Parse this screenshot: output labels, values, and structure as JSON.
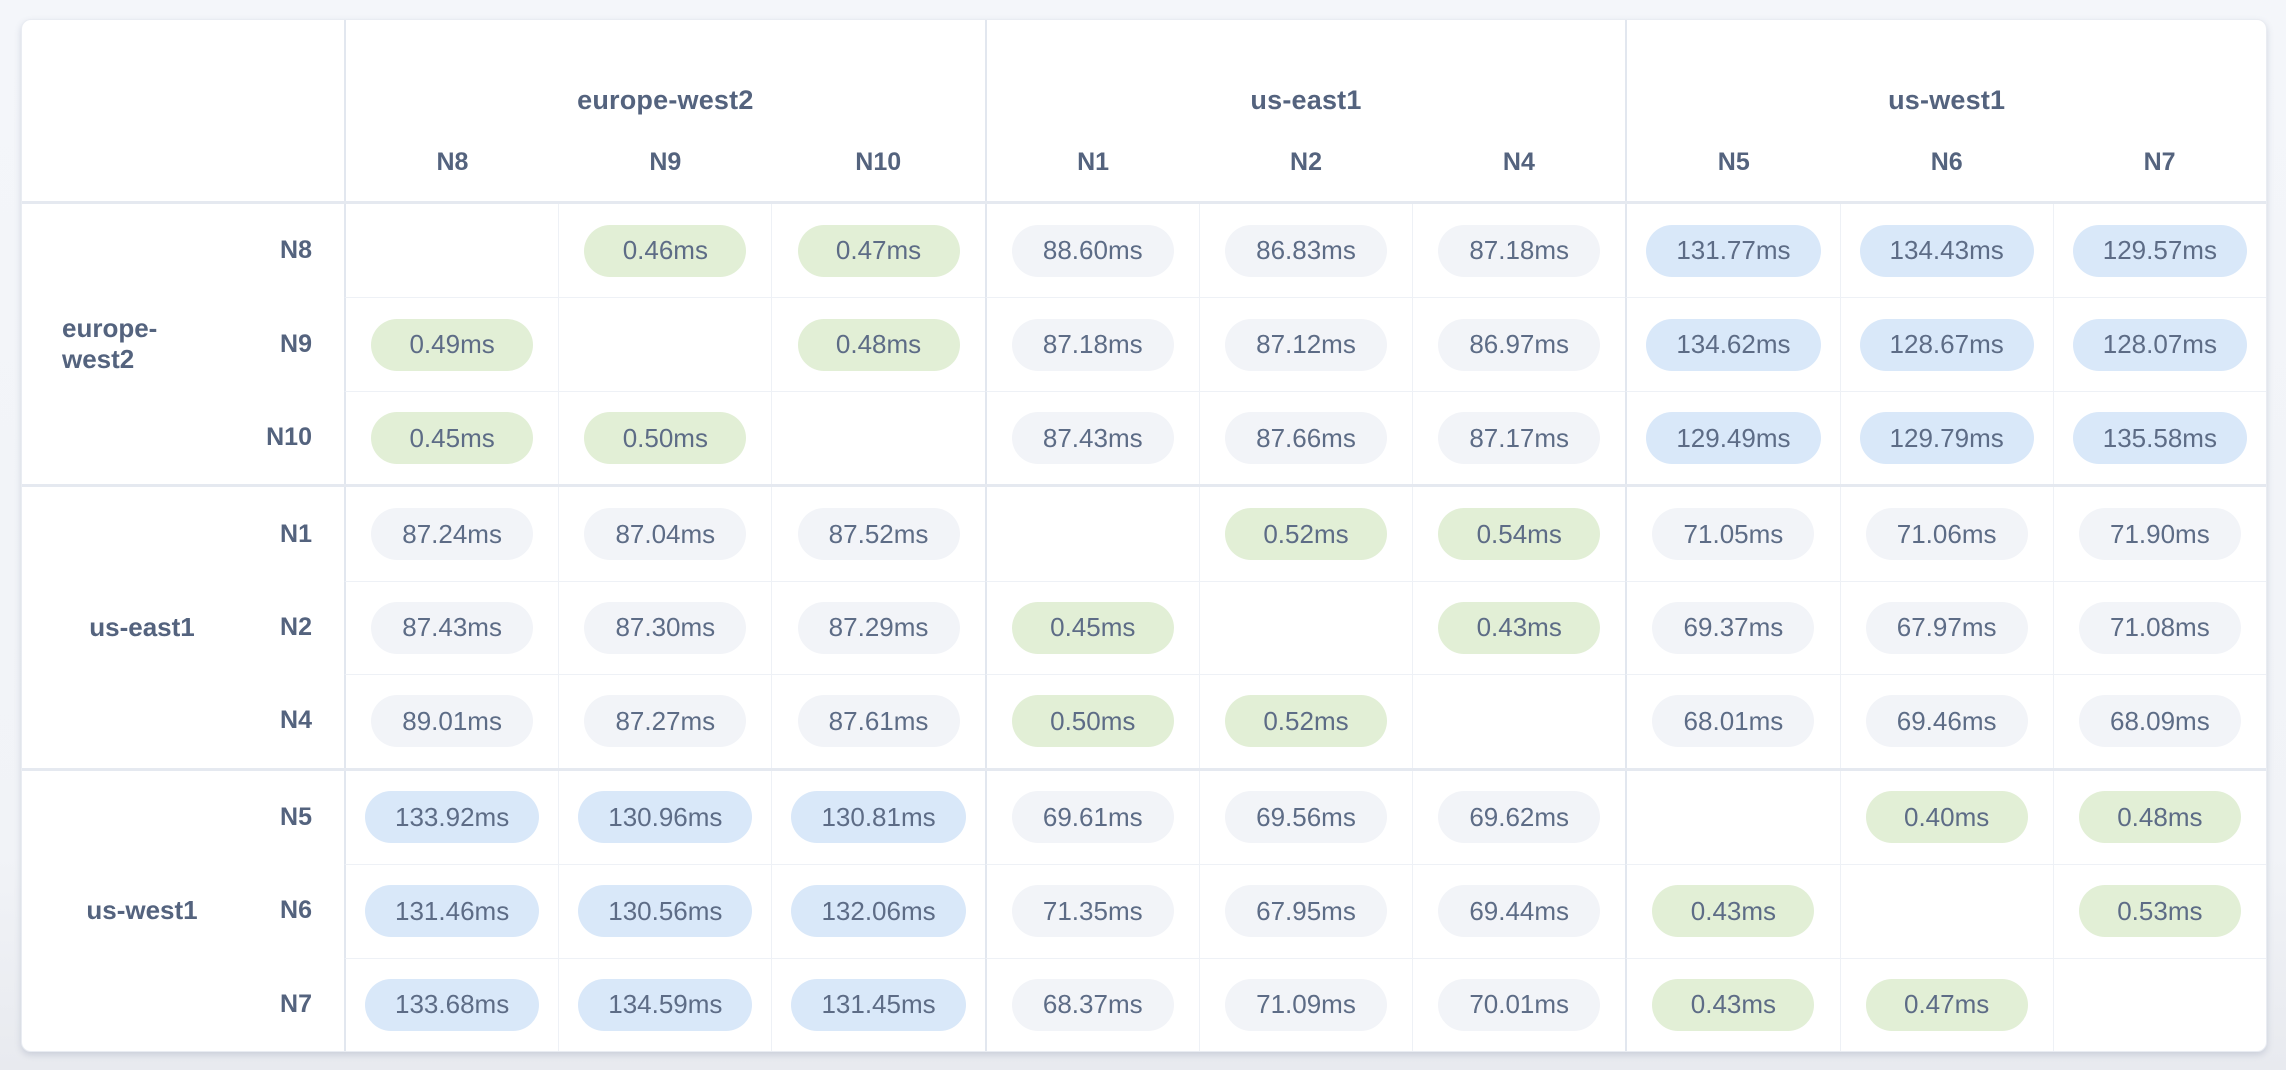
{
  "colors": {
    "low_latency_pill": "#e2efd6",
    "medium_latency_pill": "#f2f4f8",
    "high_latency_pill": "#d9e8f9",
    "text": "#5d6c86",
    "header_text": "#54637e"
  },
  "column_groups": [
    {
      "region": "europe-west2",
      "nodes": [
        "N8",
        "N9",
        "N10"
      ]
    },
    {
      "region": "us-east1",
      "nodes": [
        "N1",
        "N2",
        "N4"
      ]
    },
    {
      "region": "us-west1",
      "nodes": [
        "N5",
        "N6",
        "N7"
      ]
    }
  ],
  "row_groups": [
    {
      "region": "europe-west2",
      "rows": [
        {
          "node": "N8",
          "cells": [
            {
              "text": "",
              "tone": "none"
            },
            {
              "text": "0.46ms",
              "tone": "green"
            },
            {
              "text": "0.47ms",
              "tone": "green"
            },
            {
              "text": "88.60ms",
              "tone": "neutral"
            },
            {
              "text": "86.83ms",
              "tone": "neutral"
            },
            {
              "text": "87.18ms",
              "tone": "neutral"
            },
            {
              "text": "131.77ms",
              "tone": "blue"
            },
            {
              "text": "134.43ms",
              "tone": "blue"
            },
            {
              "text": "129.57ms",
              "tone": "blue"
            }
          ]
        },
        {
          "node": "N9",
          "cells": [
            {
              "text": "0.49ms",
              "tone": "green"
            },
            {
              "text": "",
              "tone": "none"
            },
            {
              "text": "0.48ms",
              "tone": "green"
            },
            {
              "text": "87.18ms",
              "tone": "neutral"
            },
            {
              "text": "87.12ms",
              "tone": "neutral"
            },
            {
              "text": "86.97ms",
              "tone": "neutral"
            },
            {
              "text": "134.62ms",
              "tone": "blue"
            },
            {
              "text": "128.67ms",
              "tone": "blue"
            },
            {
              "text": "128.07ms",
              "tone": "blue"
            }
          ]
        },
        {
          "node": "N10",
          "cells": [
            {
              "text": "0.45ms",
              "tone": "green"
            },
            {
              "text": "0.50ms",
              "tone": "green"
            },
            {
              "text": "",
              "tone": "none"
            },
            {
              "text": "87.43ms",
              "tone": "neutral"
            },
            {
              "text": "87.66ms",
              "tone": "neutral"
            },
            {
              "text": "87.17ms",
              "tone": "neutral"
            },
            {
              "text": "129.49ms",
              "tone": "blue"
            },
            {
              "text": "129.79ms",
              "tone": "blue"
            },
            {
              "text": "135.58ms",
              "tone": "blue"
            }
          ]
        }
      ]
    },
    {
      "region": "us-east1",
      "rows": [
        {
          "node": "N1",
          "cells": [
            {
              "text": "87.24ms",
              "tone": "neutral"
            },
            {
              "text": "87.04ms",
              "tone": "neutral"
            },
            {
              "text": "87.52ms",
              "tone": "neutral"
            },
            {
              "text": "",
              "tone": "none"
            },
            {
              "text": "0.52ms",
              "tone": "green"
            },
            {
              "text": "0.54ms",
              "tone": "green"
            },
            {
              "text": "71.05ms",
              "tone": "neutral"
            },
            {
              "text": "71.06ms",
              "tone": "neutral"
            },
            {
              "text": "71.90ms",
              "tone": "neutral"
            }
          ]
        },
        {
          "node": "N2",
          "cells": [
            {
              "text": "87.43ms",
              "tone": "neutral"
            },
            {
              "text": "87.30ms",
              "tone": "neutral"
            },
            {
              "text": "87.29ms",
              "tone": "neutral"
            },
            {
              "text": "0.45ms",
              "tone": "green"
            },
            {
              "text": "",
              "tone": "none"
            },
            {
              "text": "0.43ms",
              "tone": "green"
            },
            {
              "text": "69.37ms",
              "tone": "neutral"
            },
            {
              "text": "67.97ms",
              "tone": "neutral"
            },
            {
              "text": "71.08ms",
              "tone": "neutral"
            }
          ]
        },
        {
          "node": "N4",
          "cells": [
            {
              "text": "89.01ms",
              "tone": "neutral"
            },
            {
              "text": "87.27ms",
              "tone": "neutral"
            },
            {
              "text": "87.61ms",
              "tone": "neutral"
            },
            {
              "text": "0.50ms",
              "tone": "green"
            },
            {
              "text": "0.52ms",
              "tone": "green"
            },
            {
              "text": "",
              "tone": "none"
            },
            {
              "text": "68.01ms",
              "tone": "neutral"
            },
            {
              "text": "69.46ms",
              "tone": "neutral"
            },
            {
              "text": "68.09ms",
              "tone": "neutral"
            }
          ]
        }
      ]
    },
    {
      "region": "us-west1",
      "rows": [
        {
          "node": "N5",
          "cells": [
            {
              "text": "133.92ms",
              "tone": "blue"
            },
            {
              "text": "130.96ms",
              "tone": "blue"
            },
            {
              "text": "130.81ms",
              "tone": "blue"
            },
            {
              "text": "69.61ms",
              "tone": "neutral"
            },
            {
              "text": "69.56ms",
              "tone": "neutral"
            },
            {
              "text": "69.62ms",
              "tone": "neutral"
            },
            {
              "text": "",
              "tone": "none"
            },
            {
              "text": "0.40ms",
              "tone": "green"
            },
            {
              "text": "0.48ms",
              "tone": "green"
            }
          ]
        },
        {
          "node": "N6",
          "cells": [
            {
              "text": "131.46ms",
              "tone": "blue"
            },
            {
              "text": "130.56ms",
              "tone": "blue"
            },
            {
              "text": "132.06ms",
              "tone": "blue"
            },
            {
              "text": "71.35ms",
              "tone": "neutral"
            },
            {
              "text": "67.95ms",
              "tone": "neutral"
            },
            {
              "text": "69.44ms",
              "tone": "neutral"
            },
            {
              "text": "0.43ms",
              "tone": "green"
            },
            {
              "text": "",
              "tone": "none"
            },
            {
              "text": "0.53ms",
              "tone": "green"
            }
          ]
        },
        {
          "node": "N7",
          "cells": [
            {
              "text": "133.68ms",
              "tone": "blue"
            },
            {
              "text": "134.59ms",
              "tone": "blue"
            },
            {
              "text": "131.45ms",
              "tone": "blue"
            },
            {
              "text": "68.37ms",
              "tone": "neutral"
            },
            {
              "text": "71.09ms",
              "tone": "neutral"
            },
            {
              "text": "70.01ms",
              "tone": "neutral"
            },
            {
              "text": "0.43ms",
              "tone": "green"
            },
            {
              "text": "0.47ms",
              "tone": "green"
            },
            {
              "text": "",
              "tone": "none"
            }
          ]
        }
      ]
    }
  ]
}
